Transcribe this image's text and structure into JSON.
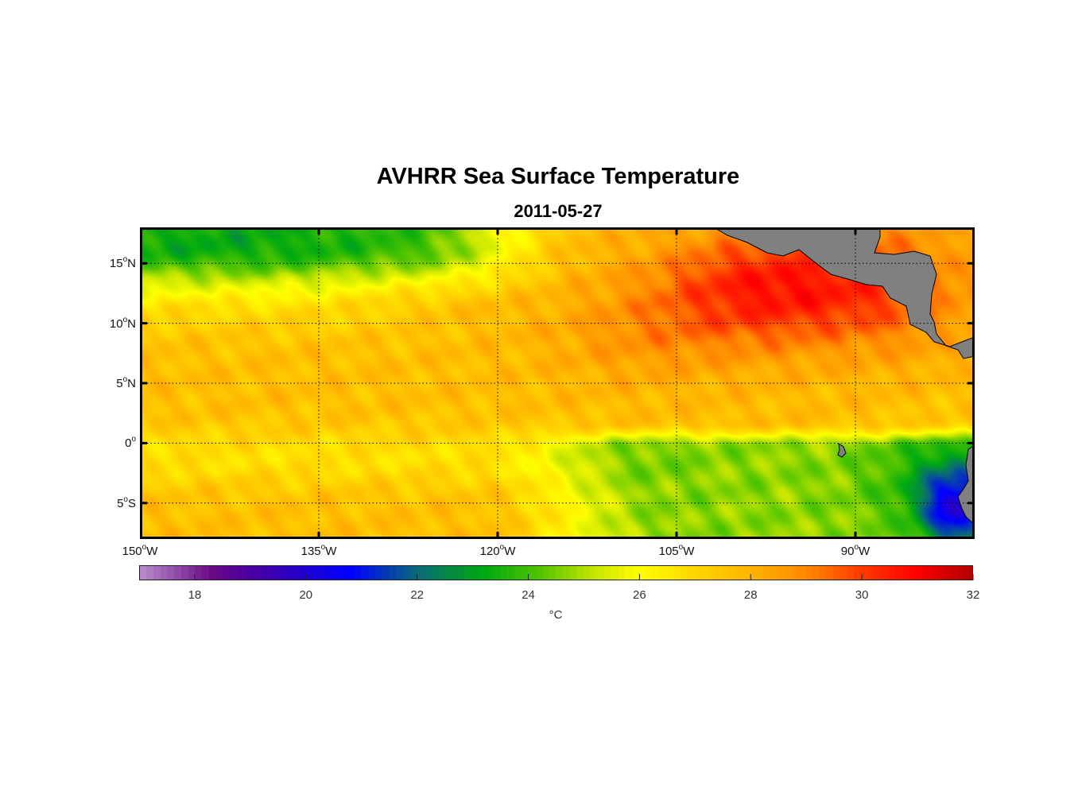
{
  "chart_data": {
    "type": "heatmap",
    "title": "AVHRR Sea Surface Temperature",
    "subtitle": "2011-05-27",
    "variable": "Sea surface temperature",
    "lon_range": [
      -150,
      -80
    ],
    "lat_range": [
      -8,
      18
    ],
    "lon_ticks": [
      {
        "value": -150,
        "num": "150",
        "sup": "o",
        "hemi": "W"
      },
      {
        "value": -135,
        "num": "135",
        "sup": "o",
        "hemi": "W"
      },
      {
        "value": -120,
        "num": "120",
        "sup": "o",
        "hemi": "W"
      },
      {
        "value": -105,
        "num": "105",
        "sup": "o",
        "hemi": "W"
      },
      {
        "value": -90,
        "num": "90",
        "sup": "o",
        "hemi": "W"
      }
    ],
    "lat_ticks": [
      {
        "value": 15,
        "num": "15",
        "sup": "o",
        "hemi": "N"
      },
      {
        "value": 10,
        "num": "10",
        "sup": "o",
        "hemi": "N"
      },
      {
        "value": 5,
        "num": "5",
        "sup": "o",
        "hemi": "N"
      },
      {
        "value": 0,
        "num": "0",
        "sup": "o",
        "hemi": ""
      },
      {
        "value": -5,
        "num": "5",
        "sup": "o",
        "hemi": "S"
      }
    ],
    "colorbar": {
      "range": [
        17,
        32
      ],
      "ticks": [
        "18",
        "20",
        "22",
        "24",
        "26",
        "28",
        "30",
        "32"
      ],
      "unit": "°C",
      "stops": [
        [
          17,
          "#b890cc"
        ],
        [
          18.3,
          "#6a0a86"
        ],
        [
          19,
          "#4a00a0"
        ],
        [
          20.8,
          "#0000ff"
        ],
        [
          22,
          "#0a6a78"
        ],
        [
          23.2,
          "#00aa10"
        ],
        [
          24.2,
          "#50c400"
        ],
        [
          25.2,
          "#c8e600"
        ],
        [
          26,
          "#ffff00"
        ],
        [
          27,
          "#ffd800"
        ],
        [
          28,
          "#ffb400"
        ],
        [
          29,
          "#ff8a00"
        ],
        [
          30,
          "#ff3a00"
        ],
        [
          31,
          "#ff0000"
        ],
        [
          32,
          "#b00000"
        ]
      ]
    },
    "land_color": "#808080",
    "features": [
      "cool band north of 14N west of 115W (~23-25 °C)",
      "warm pool 10-17N near 95-105W (~30-31 °C)",
      "equatorial cold tongue east of 110W (~24-25 °C)",
      "coldest water near 82W, 5S (~20-21 °C)"
    ]
  }
}
